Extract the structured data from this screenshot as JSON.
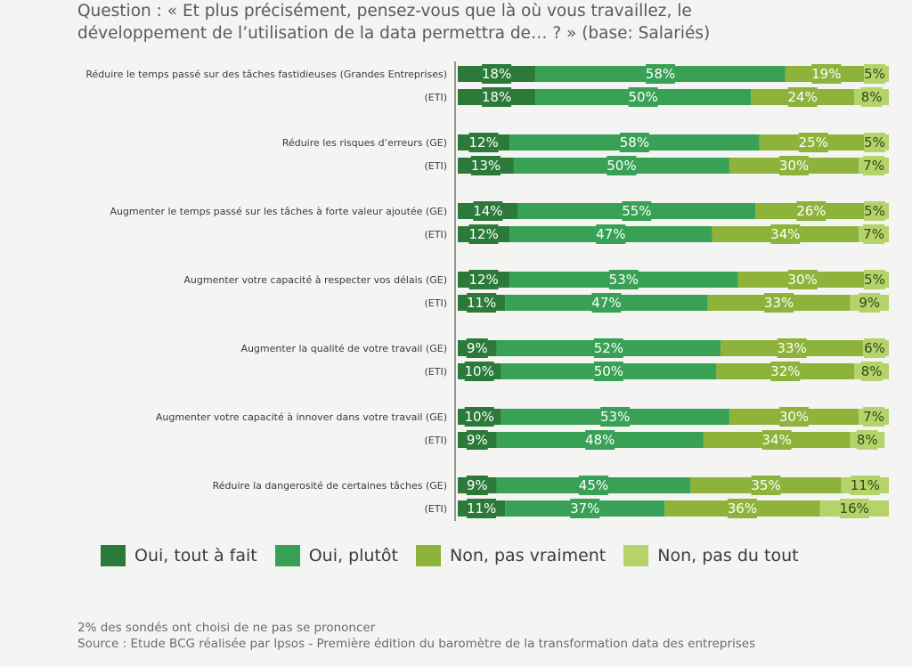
{
  "header": {
    "title": "Question : « Et plus précisément, pensez-vous que là où vous travaillez, le\ndéveloppement de l’utilisation de la data permettra de… ? » (base: Salariés)"
  },
  "colors": {
    "tout_a_fait": "#2c7a3a",
    "plutot": "#38a155",
    "pas_vraiment": "#8db33a",
    "pas_du_tout": "#b5d36a",
    "axis": "#555555"
  },
  "chart_data": {
    "type": "bar",
    "orientation": "horizontal-stacked-100",
    "series_names": [
      "Oui, tout à fait",
      "Oui, plutôt",
      "Non, pas vraiment",
      "Non, pas du tout"
    ],
    "groups": [
      {
        "rows": [
          {
            "label": "Réduire le temps passé sur des tâches fastidieuses (Grandes Entreprises)",
            "values": [
              18,
              58,
              19,
              5
            ]
          },
          {
            "label": "(ETI)",
            "values": [
              18,
              50,
              24,
              8
            ]
          }
        ]
      },
      {
        "rows": [
          {
            "label": "Réduire les risques d’erreurs (GE)",
            "values": [
              12,
              58,
              25,
              5
            ]
          },
          {
            "label": "(ETI)",
            "values": [
              13,
              50,
              30,
              7
            ]
          }
        ]
      },
      {
        "rows": [
          {
            "label": "Augmenter le temps passé sur les tâches à forte valeur ajoutée (GE)",
            "values": [
              14,
              55,
              26,
              5
            ]
          },
          {
            "label": "(ETI)",
            "values": [
              12,
              47,
              34,
              7
            ]
          }
        ]
      },
      {
        "rows": [
          {
            "label": "Augmenter votre capacité à respecter vos délais (GE)",
            "values": [
              12,
              53,
              30,
              5
            ]
          },
          {
            "label": "(ETI)",
            "values": [
              11,
              47,
              33,
              9
            ]
          }
        ]
      },
      {
        "rows": [
          {
            "label": "Augmenter la qualité de votre travail (GE)",
            "values": [
              9,
              52,
              33,
              6
            ]
          },
          {
            "label": "(ETI)",
            "values": [
              10,
              50,
              32,
              8
            ]
          }
        ]
      },
      {
        "rows": [
          {
            "label": "Augmenter votre capacité à innover dans votre travail (GE)",
            "values": [
              10,
              53,
              30,
              7
            ]
          },
          {
            "label": "(ETI)",
            "values": [
              9,
              48,
              34,
              8
            ]
          }
        ]
      },
      {
        "rows": [
          {
            "label": "Réduire la dangerosité de certaines tâches (GE)",
            "values": [
              9,
              45,
              35,
              11
            ]
          },
          {
            "label": "(ETI)",
            "values": [
              11,
              37,
              36,
              16
            ]
          }
        ]
      }
    ],
    "value_suffix": "%"
  },
  "legend": {
    "items": [
      {
        "label": "Oui, tout à fait",
        "color": "#2c7a3a"
      },
      {
        "label": "Oui, plutôt",
        "color": "#38a155"
      },
      {
        "label": "Non, pas vraiment",
        "color": "#8db33a"
      },
      {
        "label": "Non, pas du tout",
        "color": "#b5d36a"
      }
    ]
  },
  "footer": {
    "note": "2% des sondés ont choisi de ne pas se prononcer",
    "source": "Source : Etude BCG réalisée par Ipsos - Première édition du baromètre de la transformation data des entreprises"
  }
}
